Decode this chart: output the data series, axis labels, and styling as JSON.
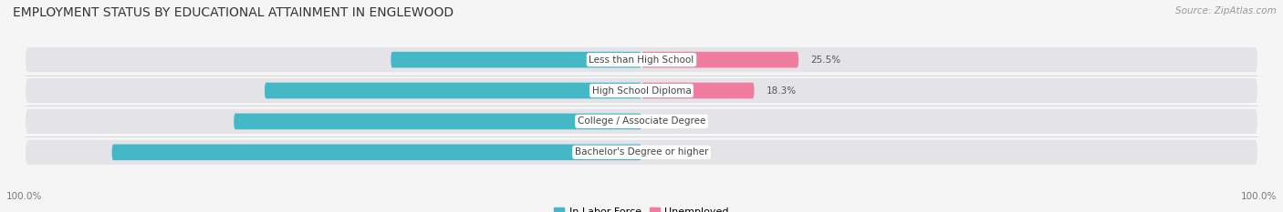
{
  "title": "EMPLOYMENT STATUS BY EDUCATIONAL ATTAINMENT IN ENGLEWOOD",
  "source": "Source: ZipAtlas.com",
  "categories": [
    "Less than High School",
    "High School Diploma",
    "College / Associate Degree",
    "Bachelor's Degree or higher"
  ],
  "in_labor_force": [
    40.7,
    61.2,
    66.2,
    86.0
  ],
  "unemployed": [
    25.5,
    18.3,
    0.0,
    0.0
  ],
  "labor_force_color": "#45b8c8",
  "unemployed_color": "#f07ca0",
  "background_color": "#f5f5f5",
  "track_color": "#e4e4e8",
  "title_fontsize": 10,
  "source_fontsize": 7.5,
  "bar_height": 0.52,
  "max_value": 100.0,
  "axis_label_left": "100.0%",
  "axis_label_right": "100.0%"
}
